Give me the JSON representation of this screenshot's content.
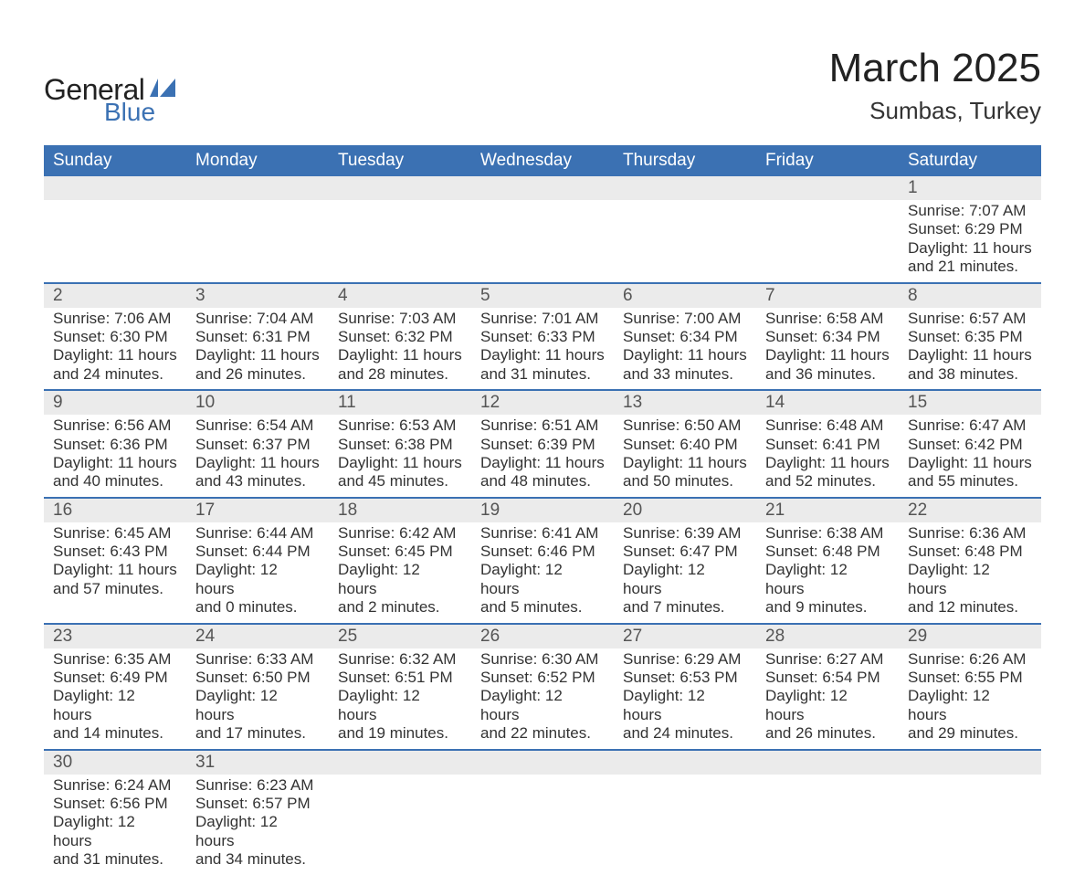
{
  "brand": {
    "word1": "General",
    "word2": "Blue",
    "icon_color": "#3B71B3"
  },
  "title": {
    "month": "March 2025",
    "location": "Sumbas, Turkey"
  },
  "colors": {
    "header_bg": "#3B71B3",
    "header_text": "#ffffff",
    "daynum_bg": "#ebebeb",
    "daynum_text": "#555555",
    "body_text": "#333333",
    "divider": "#3B71B3"
  },
  "typography": {
    "month_fontsize": 44,
    "location_fontsize": 26,
    "header_fontsize": 19,
    "daynum_fontsize": 19,
    "body_fontsize": 17
  },
  "weekdays": [
    "Sunday",
    "Monday",
    "Tuesday",
    "Wednesday",
    "Thursday",
    "Friday",
    "Saturday"
  ],
  "weeks": [
    [
      null,
      null,
      null,
      null,
      null,
      null,
      {
        "n": "1",
        "sunrise": "Sunrise: 7:07 AM",
        "sunset": "Sunset: 6:29 PM",
        "d1": "Daylight: 11 hours",
        "d2": "and 21 minutes."
      }
    ],
    [
      {
        "n": "2",
        "sunrise": "Sunrise: 7:06 AM",
        "sunset": "Sunset: 6:30 PM",
        "d1": "Daylight: 11 hours",
        "d2": "and 24 minutes."
      },
      {
        "n": "3",
        "sunrise": "Sunrise: 7:04 AM",
        "sunset": "Sunset: 6:31 PM",
        "d1": "Daylight: 11 hours",
        "d2": "and 26 minutes."
      },
      {
        "n": "4",
        "sunrise": "Sunrise: 7:03 AM",
        "sunset": "Sunset: 6:32 PM",
        "d1": "Daylight: 11 hours",
        "d2": "and 28 minutes."
      },
      {
        "n": "5",
        "sunrise": "Sunrise: 7:01 AM",
        "sunset": "Sunset: 6:33 PM",
        "d1": "Daylight: 11 hours",
        "d2": "and 31 minutes."
      },
      {
        "n": "6",
        "sunrise": "Sunrise: 7:00 AM",
        "sunset": "Sunset: 6:34 PM",
        "d1": "Daylight: 11 hours",
        "d2": "and 33 minutes."
      },
      {
        "n": "7",
        "sunrise": "Sunrise: 6:58 AM",
        "sunset": "Sunset: 6:34 PM",
        "d1": "Daylight: 11 hours",
        "d2": "and 36 minutes."
      },
      {
        "n": "8",
        "sunrise": "Sunrise: 6:57 AM",
        "sunset": "Sunset: 6:35 PM",
        "d1": "Daylight: 11 hours",
        "d2": "and 38 minutes."
      }
    ],
    [
      {
        "n": "9",
        "sunrise": "Sunrise: 6:56 AM",
        "sunset": "Sunset: 6:36 PM",
        "d1": "Daylight: 11 hours",
        "d2": "and 40 minutes."
      },
      {
        "n": "10",
        "sunrise": "Sunrise: 6:54 AM",
        "sunset": "Sunset: 6:37 PM",
        "d1": "Daylight: 11 hours",
        "d2": "and 43 minutes."
      },
      {
        "n": "11",
        "sunrise": "Sunrise: 6:53 AM",
        "sunset": "Sunset: 6:38 PM",
        "d1": "Daylight: 11 hours",
        "d2": "and 45 minutes."
      },
      {
        "n": "12",
        "sunrise": "Sunrise: 6:51 AM",
        "sunset": "Sunset: 6:39 PM",
        "d1": "Daylight: 11 hours",
        "d2": "and 48 minutes."
      },
      {
        "n": "13",
        "sunrise": "Sunrise: 6:50 AM",
        "sunset": "Sunset: 6:40 PM",
        "d1": "Daylight: 11 hours",
        "d2": "and 50 minutes."
      },
      {
        "n": "14",
        "sunrise": "Sunrise: 6:48 AM",
        "sunset": "Sunset: 6:41 PM",
        "d1": "Daylight: 11 hours",
        "d2": "and 52 minutes."
      },
      {
        "n": "15",
        "sunrise": "Sunrise: 6:47 AM",
        "sunset": "Sunset: 6:42 PM",
        "d1": "Daylight: 11 hours",
        "d2": "and 55 minutes."
      }
    ],
    [
      {
        "n": "16",
        "sunrise": "Sunrise: 6:45 AM",
        "sunset": "Sunset: 6:43 PM",
        "d1": "Daylight: 11 hours",
        "d2": "and 57 minutes."
      },
      {
        "n": "17",
        "sunrise": "Sunrise: 6:44 AM",
        "sunset": "Sunset: 6:44 PM",
        "d1": "Daylight: 12 hours",
        "d2": "and 0 minutes."
      },
      {
        "n": "18",
        "sunrise": "Sunrise: 6:42 AM",
        "sunset": "Sunset: 6:45 PM",
        "d1": "Daylight: 12 hours",
        "d2": "and 2 minutes."
      },
      {
        "n": "19",
        "sunrise": "Sunrise: 6:41 AM",
        "sunset": "Sunset: 6:46 PM",
        "d1": "Daylight: 12 hours",
        "d2": "and 5 minutes."
      },
      {
        "n": "20",
        "sunrise": "Sunrise: 6:39 AM",
        "sunset": "Sunset: 6:47 PM",
        "d1": "Daylight: 12 hours",
        "d2": "and 7 minutes."
      },
      {
        "n": "21",
        "sunrise": "Sunrise: 6:38 AM",
        "sunset": "Sunset: 6:48 PM",
        "d1": "Daylight: 12 hours",
        "d2": "and 9 minutes."
      },
      {
        "n": "22",
        "sunrise": "Sunrise: 6:36 AM",
        "sunset": "Sunset: 6:48 PM",
        "d1": "Daylight: 12 hours",
        "d2": "and 12 minutes."
      }
    ],
    [
      {
        "n": "23",
        "sunrise": "Sunrise: 6:35 AM",
        "sunset": "Sunset: 6:49 PM",
        "d1": "Daylight: 12 hours",
        "d2": "and 14 minutes."
      },
      {
        "n": "24",
        "sunrise": "Sunrise: 6:33 AM",
        "sunset": "Sunset: 6:50 PM",
        "d1": "Daylight: 12 hours",
        "d2": "and 17 minutes."
      },
      {
        "n": "25",
        "sunrise": "Sunrise: 6:32 AM",
        "sunset": "Sunset: 6:51 PM",
        "d1": "Daylight: 12 hours",
        "d2": "and 19 minutes."
      },
      {
        "n": "26",
        "sunrise": "Sunrise: 6:30 AM",
        "sunset": "Sunset: 6:52 PM",
        "d1": "Daylight: 12 hours",
        "d2": "and 22 minutes."
      },
      {
        "n": "27",
        "sunrise": "Sunrise: 6:29 AM",
        "sunset": "Sunset: 6:53 PM",
        "d1": "Daylight: 12 hours",
        "d2": "and 24 minutes."
      },
      {
        "n": "28",
        "sunrise": "Sunrise: 6:27 AM",
        "sunset": "Sunset: 6:54 PM",
        "d1": "Daylight: 12 hours",
        "d2": "and 26 minutes."
      },
      {
        "n": "29",
        "sunrise": "Sunrise: 6:26 AM",
        "sunset": "Sunset: 6:55 PM",
        "d1": "Daylight: 12 hours",
        "d2": "and 29 minutes."
      }
    ],
    [
      {
        "n": "30",
        "sunrise": "Sunrise: 6:24 AM",
        "sunset": "Sunset: 6:56 PM",
        "d1": "Daylight: 12 hours",
        "d2": "and 31 minutes."
      },
      {
        "n": "31",
        "sunrise": "Sunrise: 6:23 AM",
        "sunset": "Sunset: 6:57 PM",
        "d1": "Daylight: 12 hours",
        "d2": "and 34 minutes."
      },
      null,
      null,
      null,
      null,
      null
    ]
  ]
}
